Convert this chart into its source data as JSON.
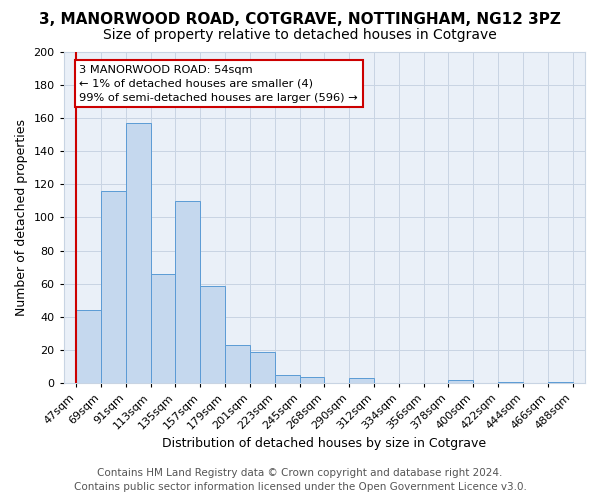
{
  "title": "3, MANORWOOD ROAD, COTGRAVE, NOTTINGHAM, NG12 3PZ",
  "subtitle": "Size of property relative to detached houses in Cotgrave",
  "xlabel": "Distribution of detached houses by size in Cotgrave",
  "ylabel": "Number of detached properties",
  "bar_values": [
    44,
    116,
    157,
    66,
    110,
    59,
    23,
    19,
    5,
    4,
    0,
    3,
    0,
    0,
    0,
    2,
    0,
    1,
    0,
    1
  ],
  "all_labels": [
    "47sqm",
    "69sqm",
    "91sqm",
    "113sqm",
    "135sqm",
    "157sqm",
    "179sqm",
    "201sqm",
    "223sqm",
    "245sqm",
    "268sqm",
    "290sqm",
    "312sqm",
    "334sqm",
    "356sqm",
    "378sqm",
    "400sqm",
    "422sqm",
    "444sqm",
    "466sqm",
    "488sqm"
  ],
  "bar_color": "#c5d8ee",
  "bar_edge_color": "#5b9bd5",
  "highlight_line_color": "#cc0000",
  "ylim": [
    0,
    200
  ],
  "yticks": [
    0,
    20,
    40,
    60,
    80,
    100,
    120,
    140,
    160,
    180,
    200
  ],
  "annotation_line1": "3 MANORWOOD ROAD: 54sqm",
  "annotation_line2": "← 1% of detached houses are smaller (4)",
  "annotation_line3": "99% of semi-detached houses are larger (596) →",
  "annotation_box_color": "#ffffff",
  "annotation_box_edge": "#cc0000",
  "footer_line1": "Contains HM Land Registry data © Crown copyright and database right 2024.",
  "footer_line2": "Contains public sector information licensed under the Open Government Licence v3.0.",
  "background_color": "#eaf0f8",
  "grid_color": "#c8d4e3",
  "title_fontsize": 11,
  "subtitle_fontsize": 10,
  "axis_label_fontsize": 9,
  "tick_fontsize": 8,
  "footer_fontsize": 7.5
}
